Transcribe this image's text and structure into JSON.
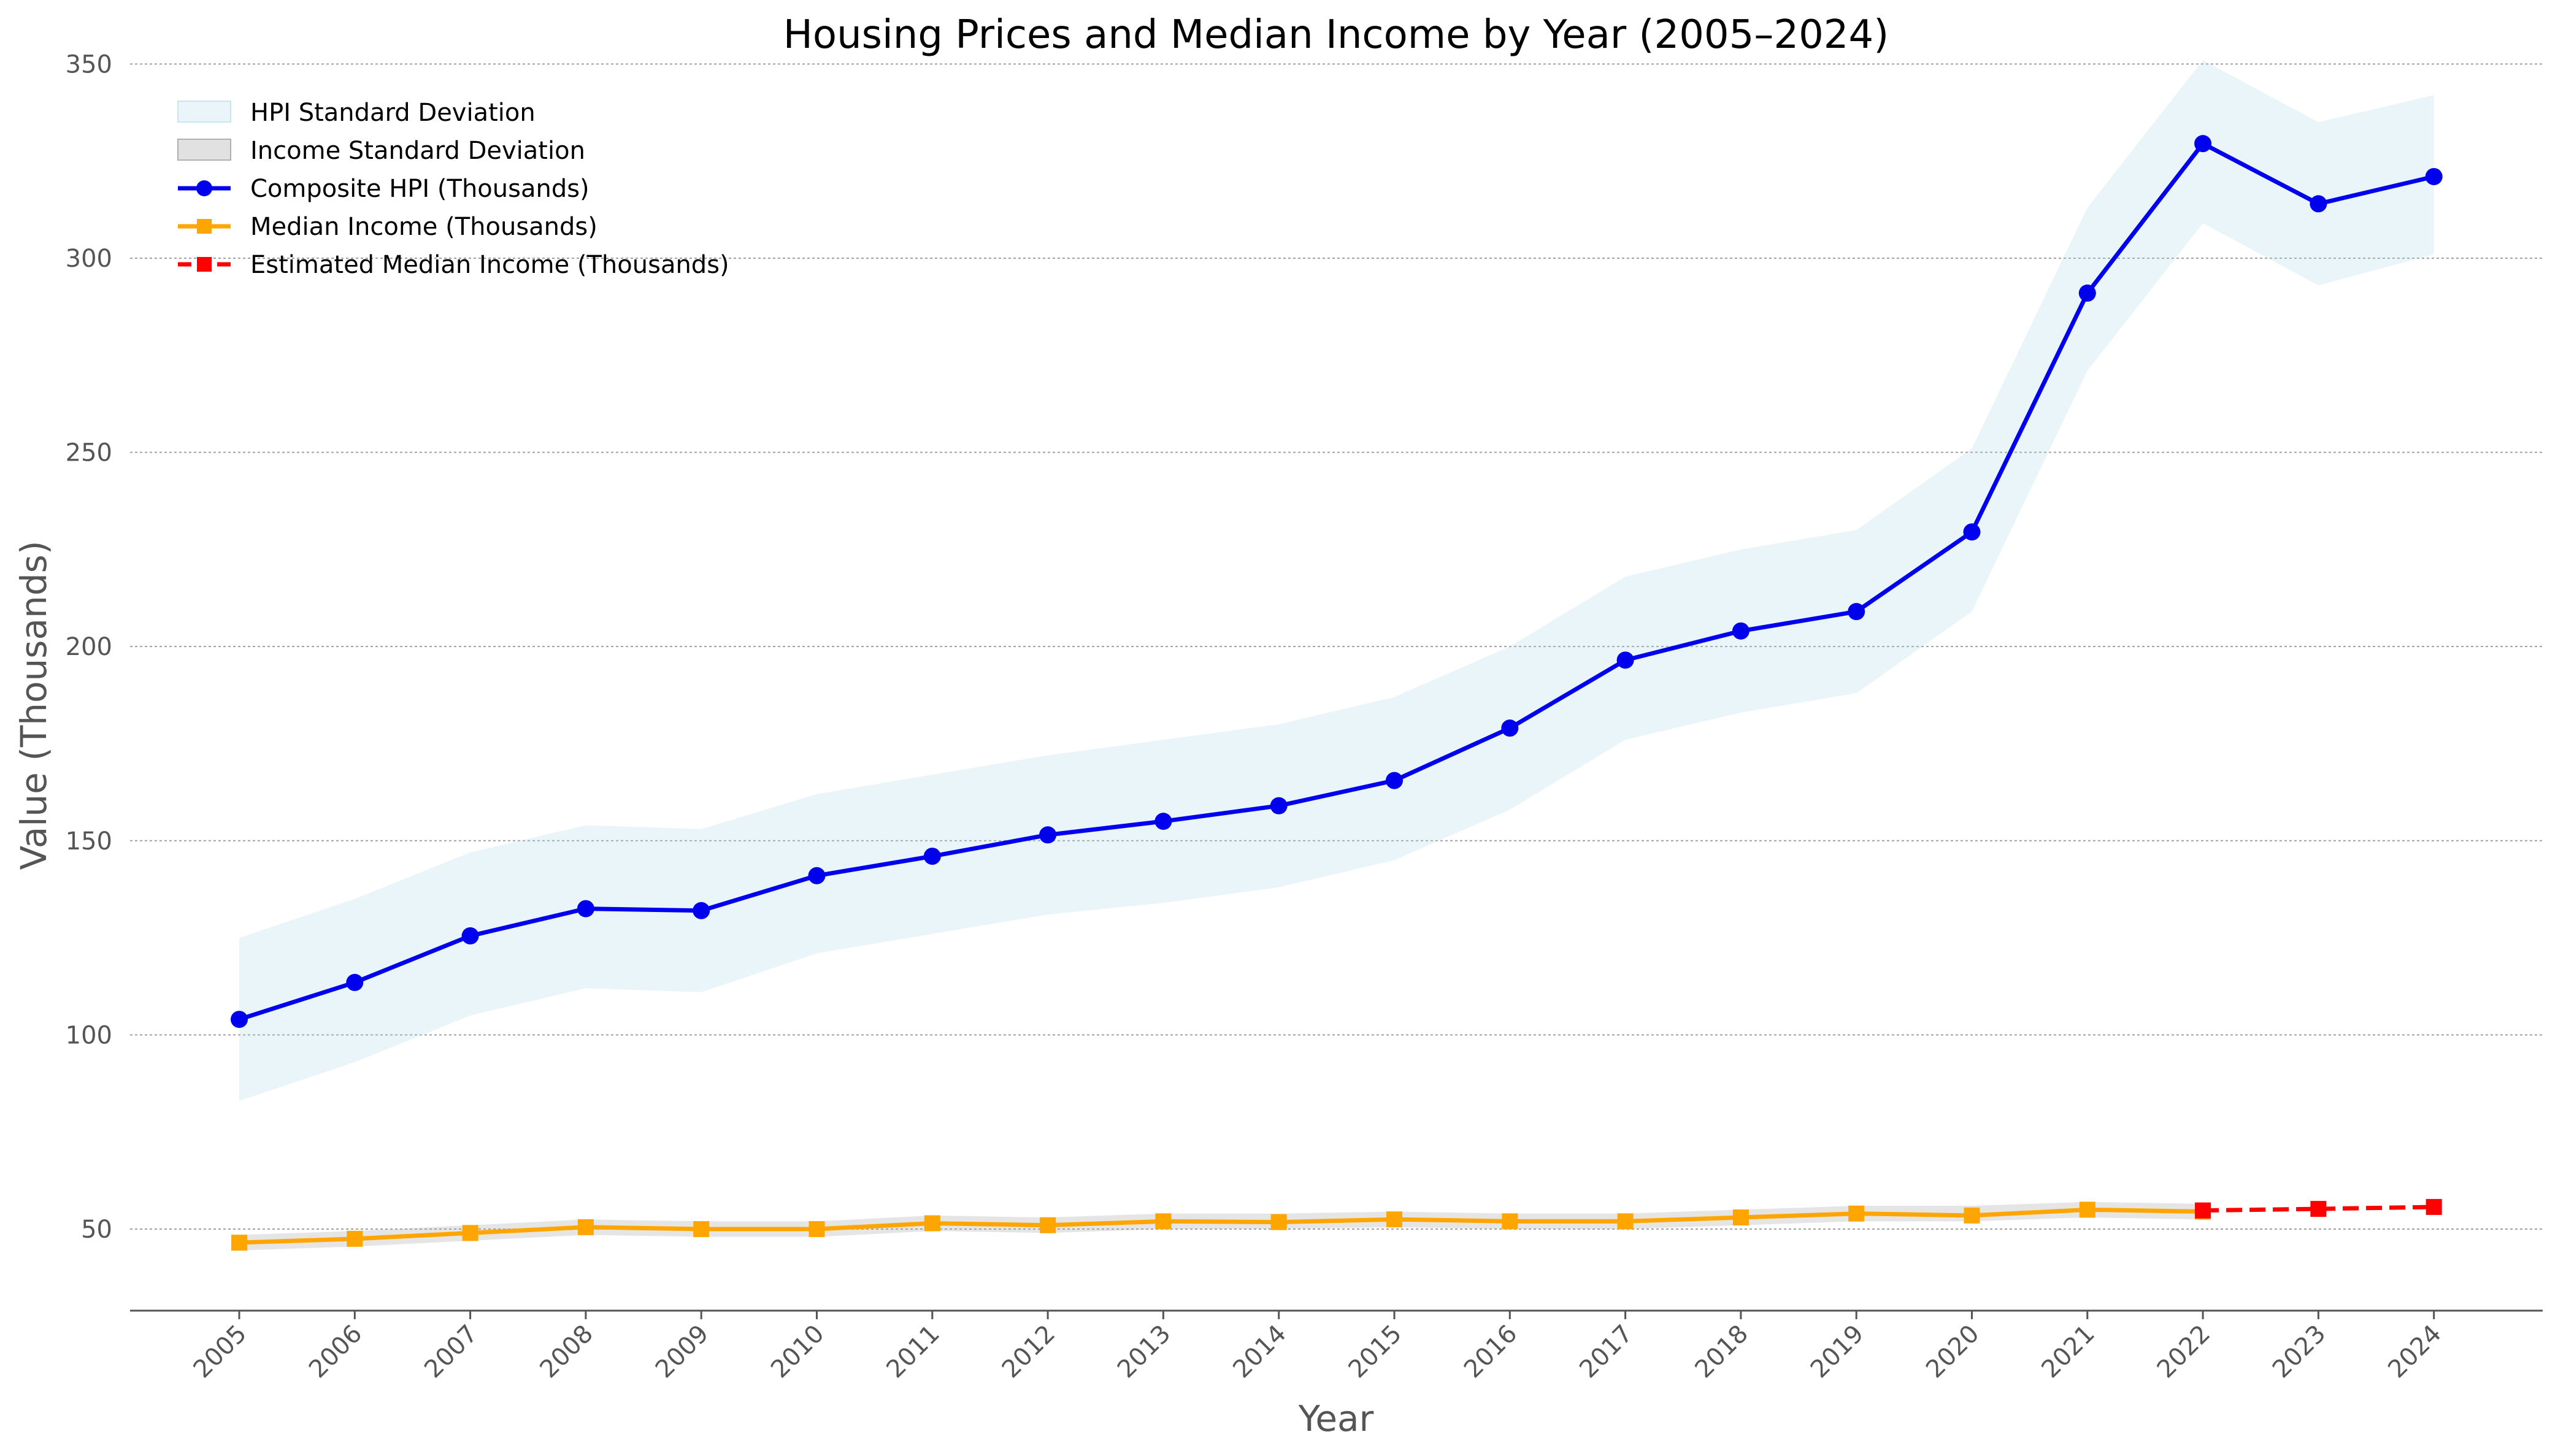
{
  "chart_data": {
    "type": "line",
    "title": "Housing Prices and Median Income by Year (2005–2024)",
    "xlabel": "Year",
    "ylabel": "Value (Thousands)",
    "ylim": [
      29,
      360
    ],
    "yticks": [
      50,
      100,
      150,
      200,
      250,
      300,
      350
    ],
    "grid": "horizontal, dotted",
    "legend_position": "top-left",
    "x": [
      "2005",
      "2006",
      "2007",
      "2008",
      "2009",
      "2010",
      "2011",
      "2012",
      "2013",
      "2014",
      "2015",
      "2016",
      "2017",
      "2018",
      "2019",
      "2020",
      "2021",
      "2022",
      "2023",
      "2024"
    ],
    "bands": [
      {
        "name": "HPI Standard Deviation",
        "color": "#add8e6",
        "x": [
          "2005",
          "2006",
          "2007",
          "2008",
          "2009",
          "2010",
          "2011",
          "2012",
          "2013",
          "2014",
          "2015",
          "2016",
          "2017",
          "2018",
          "2019",
          "2020",
          "2021",
          "2022",
          "2023",
          "2024"
        ],
        "lower": [
          83,
          93,
          105,
          112,
          111,
          121,
          126,
          131,
          134,
          138,
          145,
          158,
          176,
          183,
          188,
          209,
          271,
          309,
          293,
          301
        ],
        "upper": [
          125,
          135,
          147,
          154,
          153,
          162,
          167,
          172,
          176,
          180,
          187,
          200,
          218,
          225,
          230,
          251,
          313,
          351,
          335,
          342
        ]
      },
      {
        "name": "Income Standard Deviation",
        "color": "#a9a9a9",
        "x": [
          "2005",
          "2006",
          "2007",
          "2008",
          "2009",
          "2010",
          "2011",
          "2012",
          "2013",
          "2014",
          "2015",
          "2016",
          "2017",
          "2018",
          "2019",
          "2020",
          "2021",
          "2022"
        ],
        "lower": [
          44.5,
          45.5,
          47,
          48.5,
          48,
          48,
          49.5,
          49,
          50,
          50,
          50.5,
          50,
          50,
          51,
          52,
          52,
          53,
          52.5
        ],
        "upper": [
          48.5,
          49.5,
          51,
          52.5,
          52,
          52,
          53.5,
          53,
          54,
          54,
          54.5,
          54,
          54,
          55,
          56,
          56,
          57,
          56.5
        ]
      }
    ],
    "series": [
      {
        "name": "Composite HPI (Thousands)",
        "color": "#0000ee",
        "marker": "circle",
        "dash": "solid",
        "x": [
          "2005",
          "2006",
          "2007",
          "2008",
          "2009",
          "2010",
          "2011",
          "2012",
          "2013",
          "2014",
          "2015",
          "2016",
          "2017",
          "2018",
          "2019",
          "2020",
          "2021",
          "2022",
          "2023",
          "2024"
        ],
        "values": [
          104,
          113.5,
          125.5,
          132.5,
          132,
          141,
          146,
          151.5,
          155,
          159,
          165.5,
          179,
          196.5,
          204,
          209,
          229.5,
          291,
          329.5,
          314,
          321
        ]
      },
      {
        "name": "Median Income (Thousands)",
        "color": "#ffa500",
        "marker": "square",
        "dash": "solid",
        "x": [
          "2005",
          "2006",
          "2007",
          "2008",
          "2009",
          "2010",
          "2011",
          "2012",
          "2013",
          "2014",
          "2015",
          "2016",
          "2017",
          "2018",
          "2019",
          "2020",
          "2021",
          "2022"
        ],
        "values": [
          46.5,
          47.5,
          49,
          50.5,
          50,
          50,
          51.5,
          51,
          52,
          51.8,
          52.5,
          52,
          52,
          53,
          54,
          53.5,
          55,
          54.5
        ]
      },
      {
        "name": "Estimated Median Income (Thousands)",
        "color": "#ff0000",
        "marker": "square",
        "dash": "dashed",
        "x": [
          "2022",
          "2023",
          "2024"
        ],
        "values": [
          54.8,
          55.2,
          55.7
        ]
      }
    ]
  }
}
